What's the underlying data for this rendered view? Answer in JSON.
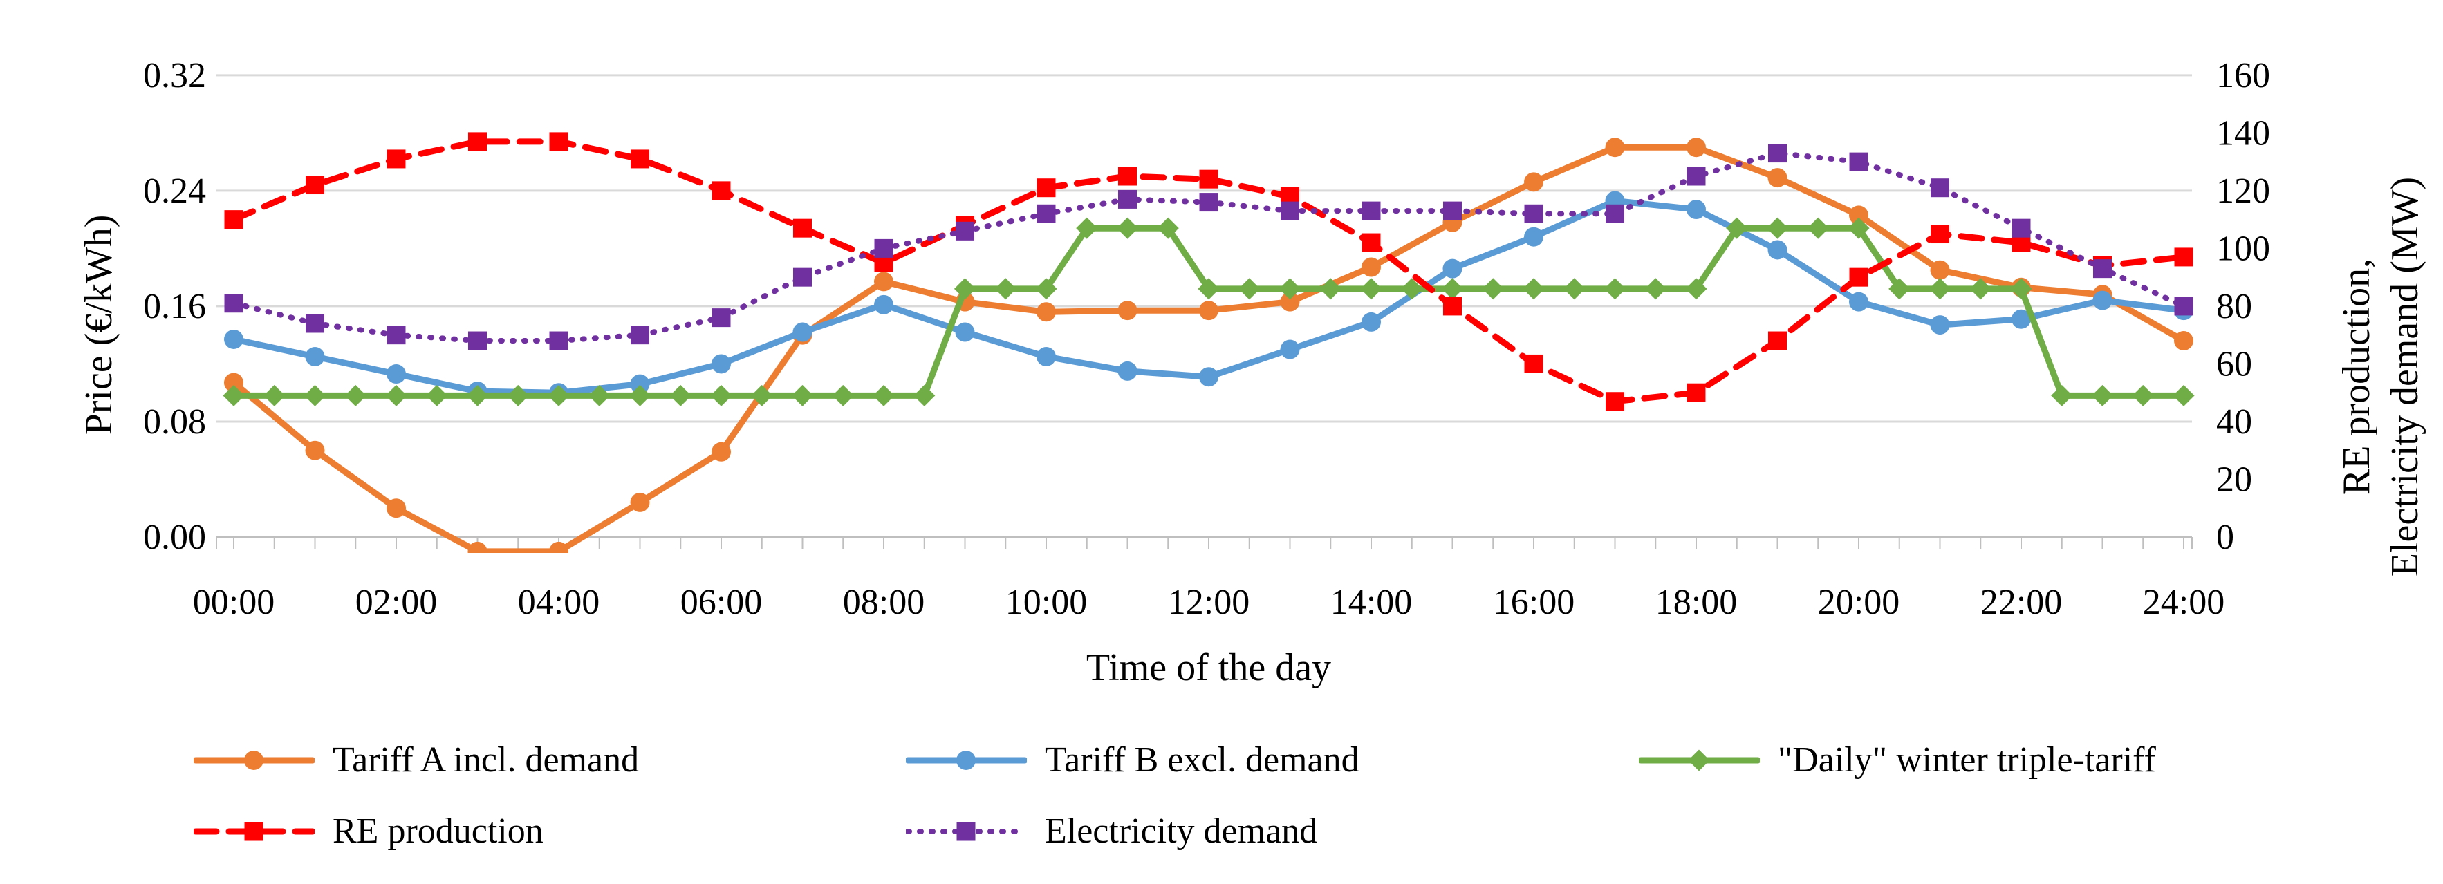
{
  "chart_data": {
    "type": "line",
    "title": "",
    "xlabel": "Time of the day",
    "ylabel_left": "Price (€/kWh)",
    "ylabel_right": [
      "RE production,",
      "Electricity demand (MW)"
    ],
    "x_range": [
      0,
      24
    ],
    "x_tick_step_hours": 2,
    "x_minor_tick_step_hours": 0.5,
    "x_ticks": [
      "00:00",
      "02:00",
      "04:00",
      "06:00",
      "08:00",
      "10:00",
      "12:00",
      "14:00",
      "16:00",
      "18:00",
      "20:00",
      "22:00",
      "24:00"
    ],
    "y_left": {
      "lim": [
        0,
        0.32
      ],
      "tick_labels": [
        "0.00",
        "0.08",
        "0.16",
        "0.24",
        "0.32"
      ],
      "tick_values": [
        0,
        0.08,
        0.16,
        0.24,
        0.32
      ]
    },
    "y_right": {
      "lim": [
        0,
        160
      ],
      "tick_labels": [
        "0",
        "20",
        "40",
        "60",
        "80",
        "100",
        "120",
        "140",
        "160"
      ],
      "tick_values": [
        0,
        20,
        40,
        60,
        80,
        100,
        120,
        140,
        160
      ]
    },
    "grid": true,
    "legend_position": "bottom",
    "gridline_color": "#D9D9D9",
    "axis_line_color": "#BFBFBF",
    "series": [
      {
        "name": "Tariff A incl. demand",
        "axis": "left",
        "color": "#ED7D31",
        "line": "solid",
        "marker": "circle",
        "x": [
          0,
          1,
          2,
          3,
          4,
          5,
          6,
          7,
          8,
          9,
          10,
          11,
          12,
          13,
          14,
          15,
          16,
          17,
          18,
          19,
          20,
          21,
          22,
          23,
          24
        ],
        "values": [
          0.107,
          0.06,
          0.02,
          -0.01,
          -0.01,
          0.024,
          0.059,
          0.14,
          0.177,
          0.163,
          0.156,
          0.157,
          0.157,
          0.163,
          0.187,
          0.218,
          0.246,
          0.27,
          0.27,
          0.249,
          0.223,
          0.185,
          0.173,
          0.168,
          0.136
        ]
      },
      {
        "name": "Tariff B excl. demand",
        "axis": "left",
        "color": "#5B9BD5",
        "line": "solid",
        "marker": "circle",
        "x": [
          0,
          1,
          2,
          3,
          4,
          5,
          6,
          7,
          8,
          9,
          10,
          11,
          12,
          13,
          14,
          15,
          16,
          17,
          18,
          19,
          20,
          21,
          22,
          23,
          24
        ],
        "values": [
          0.137,
          0.125,
          0.113,
          0.101,
          0.1,
          0.106,
          0.12,
          0.142,
          0.161,
          0.142,
          0.125,
          0.115,
          0.111,
          0.13,
          0.149,
          0.186,
          0.208,
          0.233,
          0.227,
          0.199,
          0.163,
          0.147,
          0.151,
          0.164,
          0.157
        ]
      },
      {
        "name": "\"Daily\" winter triple-tariff",
        "axis": "left",
        "color": "#70AD47",
        "line": "solid",
        "marker": "diamond",
        "x": [
          0,
          0.5,
          1,
          1.5,
          2,
          2.5,
          3,
          3.5,
          4,
          4.5,
          5,
          5.5,
          6,
          6.5,
          7,
          7.5,
          8,
          8.5,
          9,
          9.5,
          10,
          10.5,
          11,
          11.5,
          12,
          12.5,
          13,
          13.5,
          14,
          14.5,
          15,
          15.5,
          16,
          16.5,
          17,
          17.5,
          18,
          18.5,
          19,
          19.5,
          20,
          20.5,
          21,
          21.5,
          22,
          22.5,
          23,
          23.5,
          24
        ],
        "values": [
          0.098,
          0.098,
          0.098,
          0.098,
          0.098,
          0.098,
          0.098,
          0.098,
          0.098,
          0.098,
          0.098,
          0.098,
          0.098,
          0.098,
          0.098,
          0.098,
          0.098,
          0.098,
          0.172,
          0.172,
          0.172,
          0.214,
          0.214,
          0.214,
          0.172,
          0.172,
          0.172,
          0.172,
          0.172,
          0.172,
          0.172,
          0.172,
          0.172,
          0.172,
          0.172,
          0.172,
          0.172,
          0.214,
          0.214,
          0.214,
          0.214,
          0.172,
          0.172,
          0.172,
          0.172,
          0.098,
          0.098,
          0.098,
          0.098
        ]
      },
      {
        "name": "RE production",
        "axis": "right",
        "color": "#FF0000",
        "line": "dashed",
        "marker": "square",
        "x": [
          0,
          1,
          2,
          3,
          4,
          5,
          6,
          7,
          8,
          9,
          10,
          11,
          12,
          13,
          14,
          15,
          16,
          17,
          18,
          19,
          20,
          21,
          22,
          23,
          24
        ],
        "values": [
          110,
          122,
          131,
          137,
          137,
          131,
          120,
          107,
          95,
          108,
          121,
          125,
          124,
          118,
          102,
          80,
          60,
          47,
          50,
          68,
          90,
          105,
          102,
          94,
          97
        ]
      },
      {
        "name": "Electricity demand",
        "axis": "right",
        "color": "#7030A0",
        "line": "dotted",
        "marker": "square",
        "x": [
          0,
          1,
          2,
          3,
          4,
          5,
          6,
          7,
          8,
          9,
          10,
          11,
          12,
          13,
          14,
          15,
          16,
          17,
          18,
          19,
          20,
          21,
          22,
          23,
          24
        ],
        "values": [
          81,
          74,
          70,
          68,
          68,
          70,
          76,
          90,
          100,
          106,
          112,
          117,
          116,
          113,
          113,
          113,
          112,
          112,
          125,
          133,
          130,
          121,
          107,
          93,
          80
        ]
      }
    ]
  }
}
